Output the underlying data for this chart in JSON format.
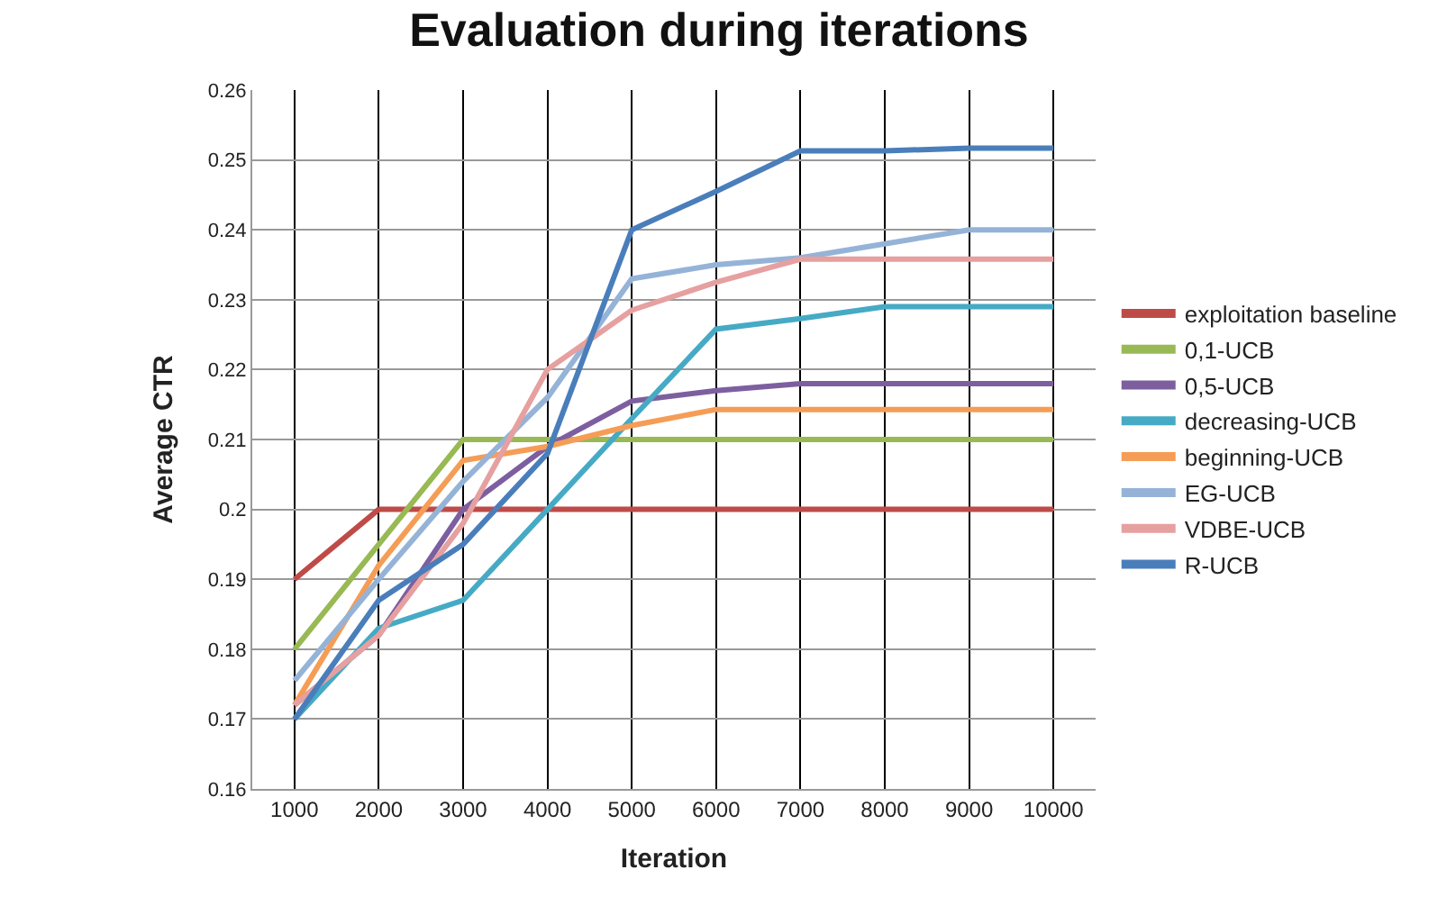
{
  "chart_data": {
    "type": "line",
    "title": "Evaluation during iterations",
    "xlabel": "Iteration",
    "ylabel": "Average CTR",
    "categories": [
      "1000",
      "2000",
      "3000",
      "4000",
      "5000",
      "6000",
      "7000",
      "8000",
      "9000",
      "10000"
    ],
    "series": [
      {
        "name": "exploitation baseline",
        "color": "#be4b48",
        "values": [
          0.19,
          0.2,
          0.2,
          0.2,
          0.2,
          0.2,
          0.2,
          0.2,
          0.2,
          0.2
        ]
      },
      {
        "name": "0,1-UCB",
        "color": "#98b954",
        "values": [
          0.18,
          0.195,
          0.21,
          0.21,
          0.21,
          0.21,
          0.21,
          0.21,
          0.21,
          0.21
        ]
      },
      {
        "name": "0,5-UCB",
        "color": "#7d5fa0",
        "values": [
          0.172,
          0.182,
          0.2,
          0.209,
          0.2155,
          0.217,
          0.218,
          0.218,
          0.218,
          0.218
        ]
      },
      {
        "name": "decreasing-UCB",
        "color": "#46aac5",
        "values": [
          0.17,
          0.183,
          0.187,
          0.2,
          0.213,
          0.2258,
          0.2273,
          0.229,
          0.229,
          0.229
        ]
      },
      {
        "name": "beginning-UCB",
        "color": "#f59d56",
        "values": [
          0.172,
          0.192,
          0.207,
          0.209,
          0.212,
          0.2143,
          0.2143,
          0.2143,
          0.2143,
          0.2143
        ]
      },
      {
        "name": "EG-UCB",
        "color": "#95b3d7",
        "values": [
          0.1755,
          0.19,
          0.204,
          0.216,
          0.233,
          0.235,
          0.236,
          0.238,
          0.24,
          0.24
        ]
      },
      {
        "name": "VDBE-UCB",
        "color": "#e6a0a0",
        "values": [
          0.172,
          0.182,
          0.198,
          0.22,
          0.2285,
          0.2325,
          0.2358,
          0.2358,
          0.2358,
          0.2358
        ]
      },
      {
        "name": "R-UCB",
        "color": "#4a7ebb",
        "values": [
          0.17,
          0.187,
          0.195,
          0.208,
          0.24,
          0.2455,
          0.2513,
          0.2513,
          0.2517,
          0.2517
        ]
      }
    ],
    "ylim": [
      0.16,
      0.26
    ],
    "yticks": [
      0.16,
      0.17,
      0.18,
      0.19,
      0.2,
      0.21,
      0.22,
      0.23,
      0.24,
      0.25,
      0.26
    ],
    "grid": true,
    "legend": "right",
    "marker": "none",
    "line_style": "solid"
  }
}
